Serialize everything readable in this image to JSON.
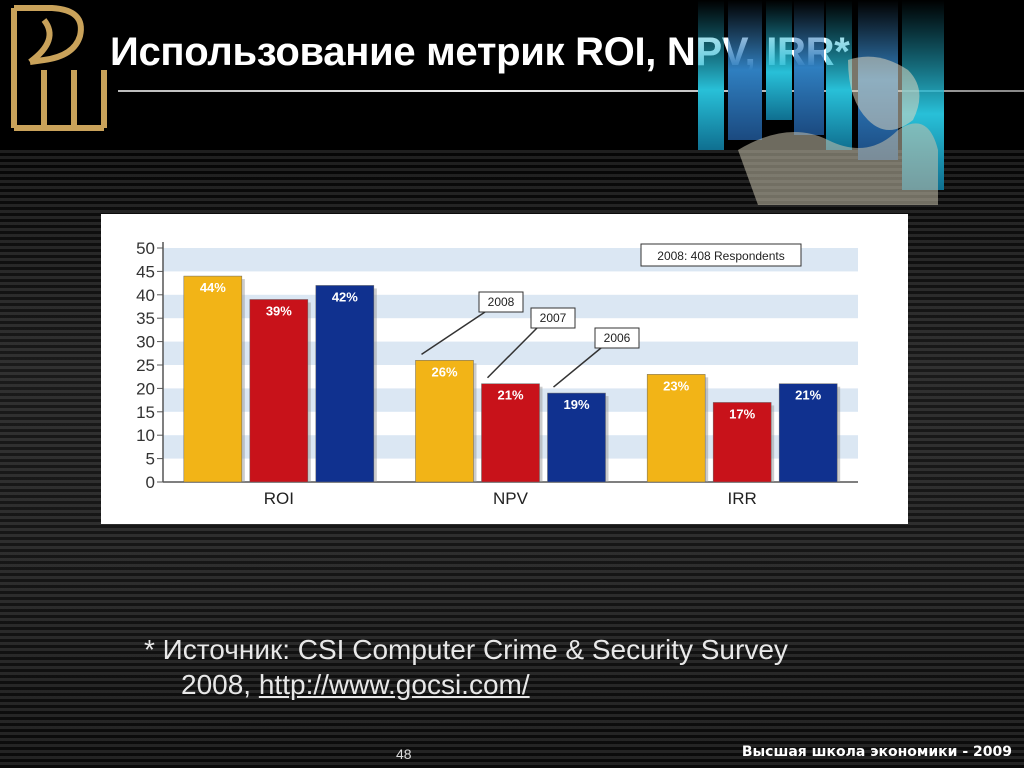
{
  "slide": {
    "title": "Использование метрик ROI, NPV, IRR*",
    "page_number": "48",
    "footer_org": "Высшая школа экономики - 2009"
  },
  "source": {
    "prefix": "* Источник: CSI Computer Crime & Security Survey",
    "year": "2008,",
    "link_text": "http://www.gocsi.com/"
  },
  "logo": {
    "icon": "vsh-logo-icon",
    "color": "#c9a25a"
  },
  "chart_data": {
    "type": "bar",
    "title": "",
    "xlabel": "",
    "ylabel": "",
    "categories": [
      "ROI",
      "NPV",
      "IRR"
    ],
    "series": [
      {
        "name": "2008",
        "values": [
          44,
          26,
          23
        ],
        "labels": [
          "44%",
          "26%",
          "23%"
        ],
        "color": "#f2b417"
      },
      {
        "name": "2007",
        "values": [
          39,
          21,
          17
        ],
        "labels": [
          "39%",
          "21%",
          "17%"
        ],
        "color": "#c8121a"
      },
      {
        "name": "2006",
        "values": [
          42,
          19,
          21
        ],
        "labels": [
          "42%",
          "19%",
          "21%"
        ],
        "color": "#10318f"
      }
    ],
    "ylim": [
      0,
      50
    ],
    "yticks": [
      0,
      5,
      10,
      15,
      20,
      25,
      30,
      35,
      40,
      45,
      50
    ],
    "respondents_note": "2008: 408 Respondents",
    "callouts": [
      "2008",
      "2007",
      "2006"
    ],
    "grid": "horizontal bands"
  }
}
